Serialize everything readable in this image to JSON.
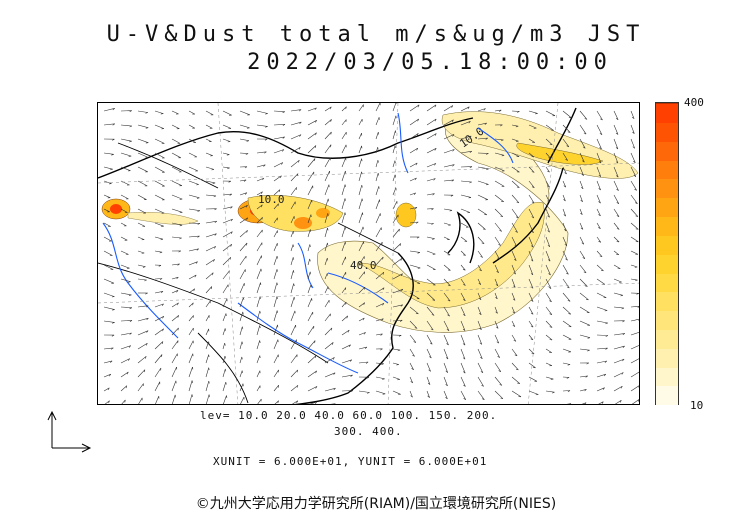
{
  "title": {
    "line1": "U-V&Dust total m/s&ug/m3 JST",
    "line2": "2022/03/05.18:00:00"
  },
  "colorbar": {
    "max_label": "400",
    "min_label": "10",
    "colors": [
      "#fffbe6",
      "#fff6cc",
      "#fff0b0",
      "#ffeb94",
      "#ffe57a",
      "#ffe060",
      "#ffda45",
      "#ffd32e",
      "#ffc820",
      "#ffb818",
      "#ffa514",
      "#ff9210",
      "#ff7e0c",
      "#ff6808",
      "#ff5304",
      "#ff4000"
    ]
  },
  "contour_labels": [
    "10.0",
    "10.0",
    "40.0"
  ],
  "levels": {
    "line1": "lev= 10.0 20.0 40.0 60.0 100. 150. 200.",
    "line2": "300. 400."
  },
  "units": "XUNIT = 6.000E+01, YUNIT = 6.000E+01",
  "credit": "©九州大学応用力学研究所(RIAM)/国立環境研究所(NIES)",
  "colors": {
    "rivers": "#1a5cff",
    "coast": "#000000",
    "dust_low": "#fff6cc",
    "dust_mid": "#ffe060",
    "dust_high": "#ff5a00"
  }
}
